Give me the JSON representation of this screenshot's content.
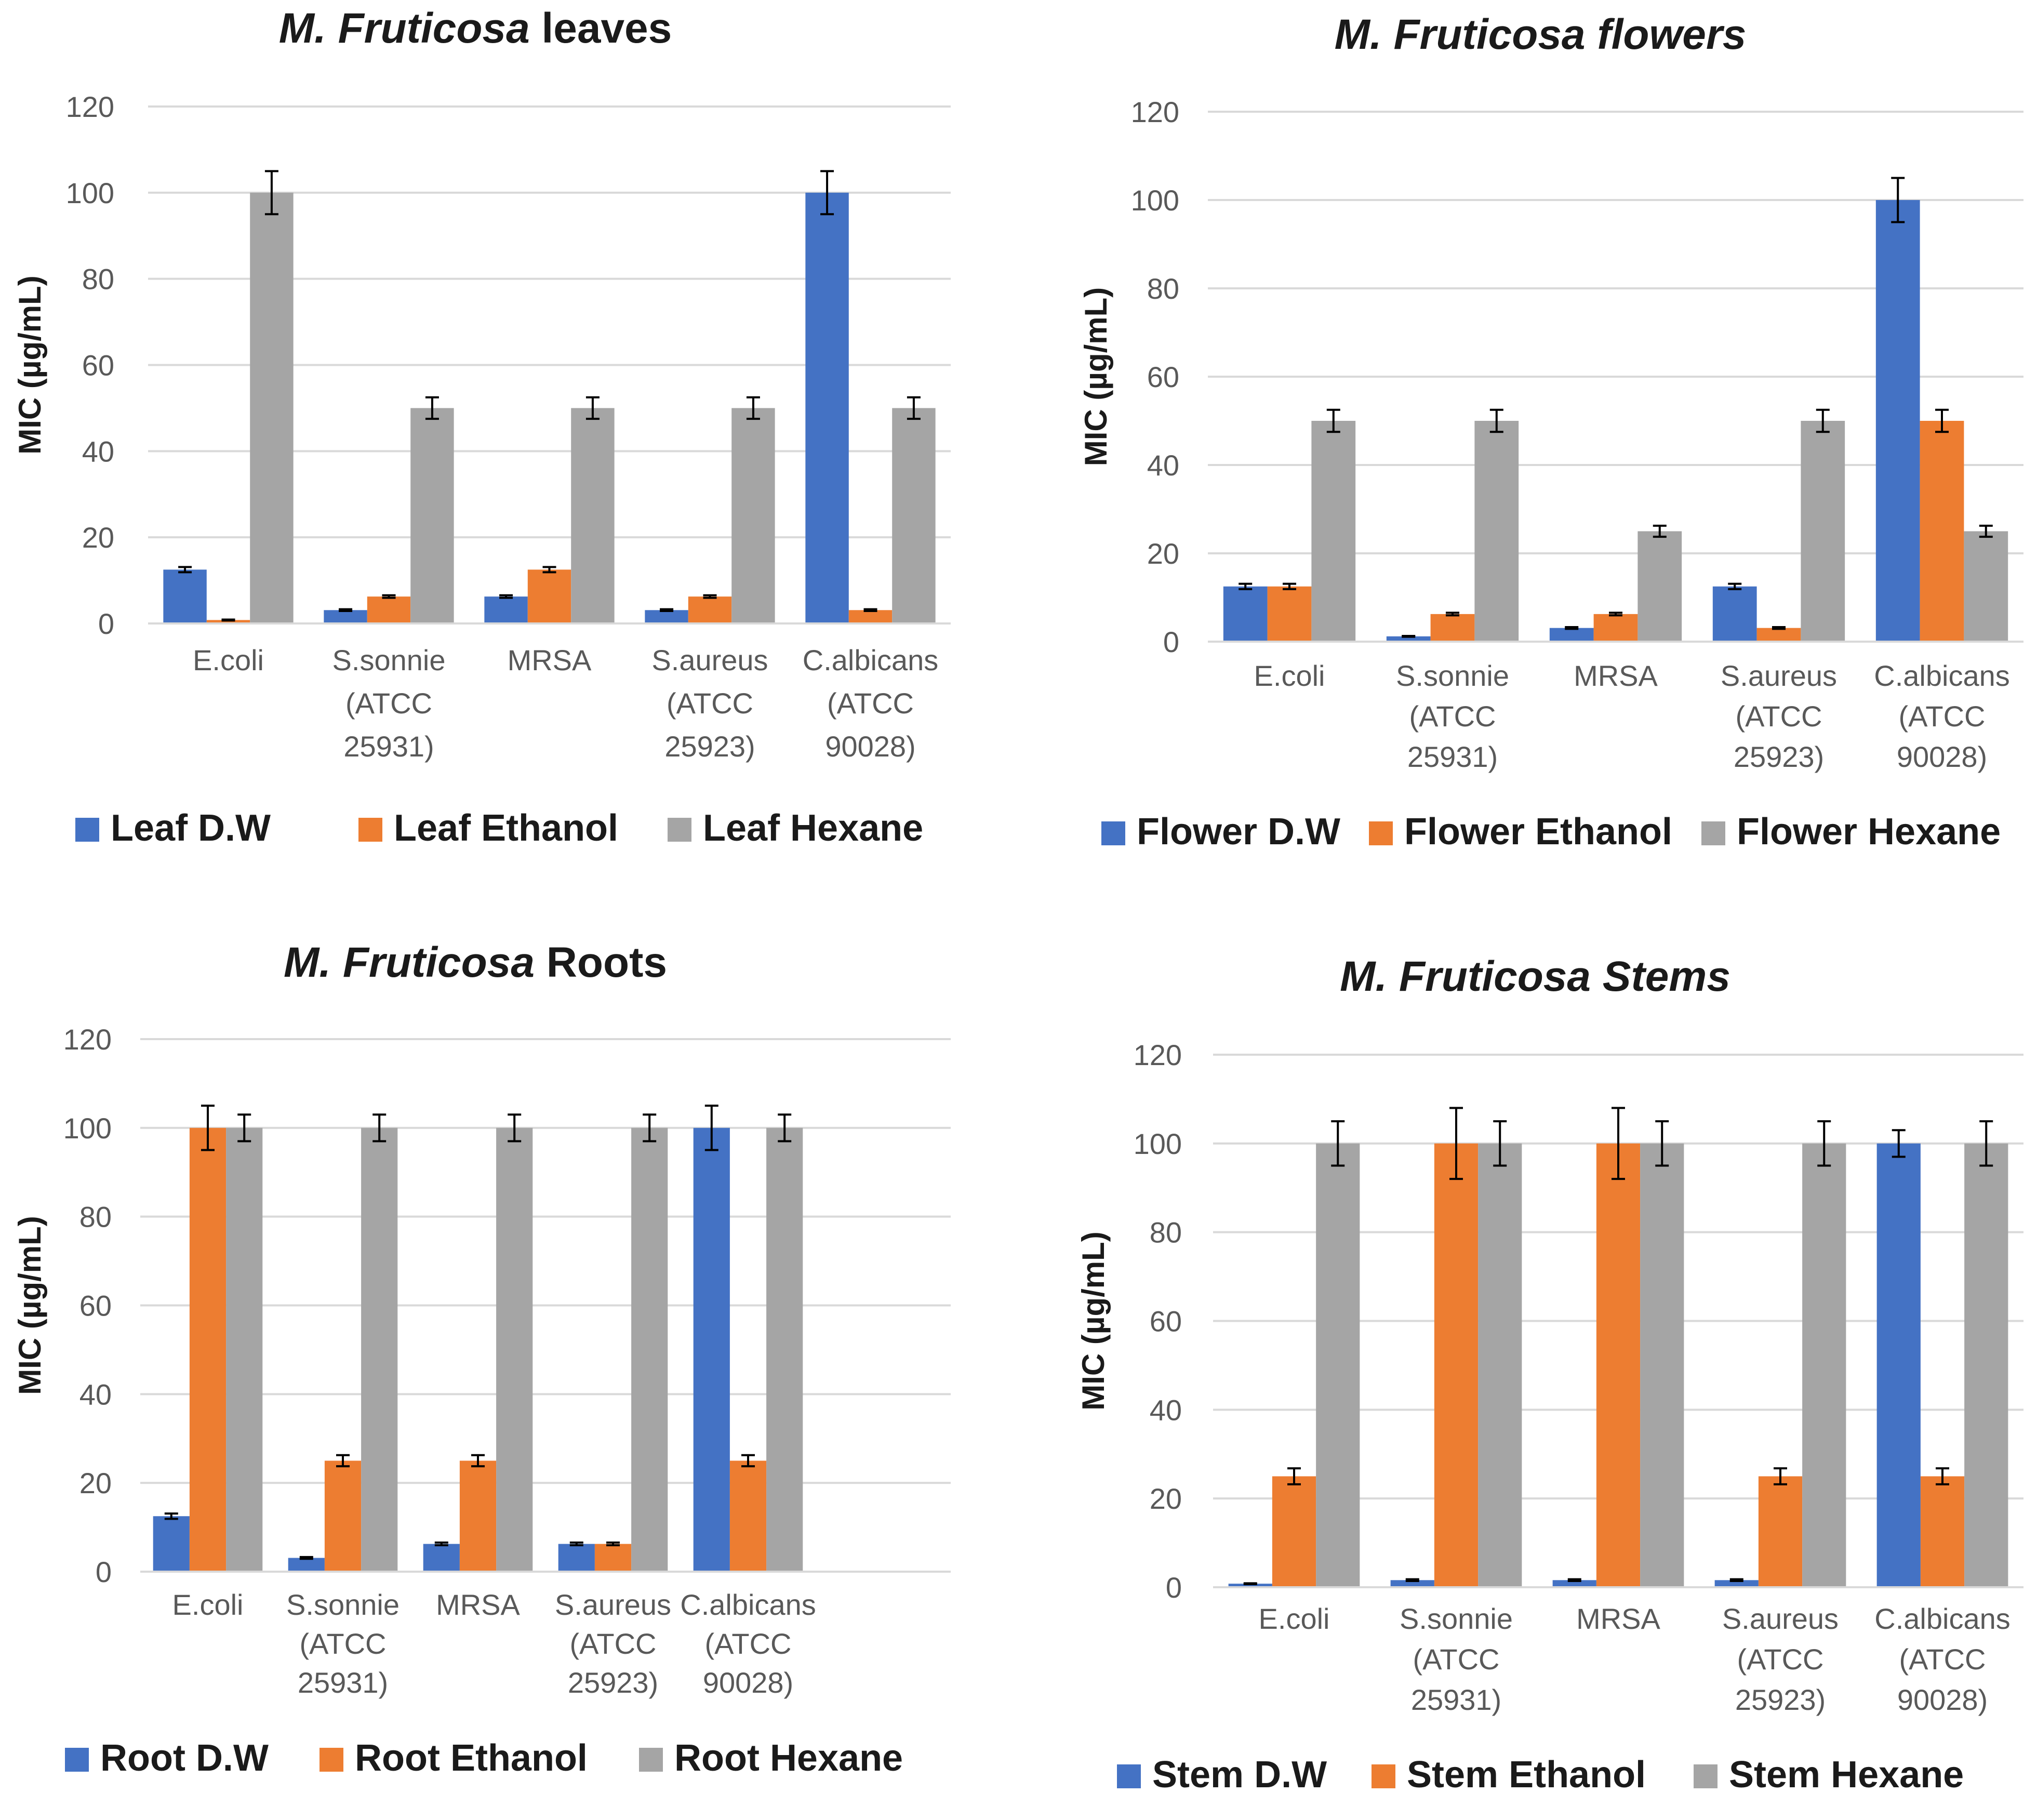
{
  "colors": {
    "dw": "#4472C4",
    "ethanol": "#ED7D31",
    "hexane": "#A5A5A5",
    "grid": "#D9D9D9",
    "axis_text": "#595959",
    "dark_text": "#1a1a1a"
  },
  "chart_data": [
    {
      "type": "bar",
      "title_italic": "M. Fruticosa",
      "title_rest": " leaves",
      "title_rest_italic": false,
      "ylabel": "MIC (µg/mL)",
      "ylim": [
        0,
        120
      ],
      "yticks": [
        "0",
        "20",
        "40",
        "60",
        "80",
        "100",
        "120"
      ],
      "categories": [
        [
          "E.coli"
        ],
        [
          "S.sonnie",
          "(ATCC",
          "25931)"
        ],
        [
          "MRSA"
        ],
        [
          "S.aureus",
          "(ATCC",
          "25923)"
        ],
        [
          "C.albicans",
          "(ATCC",
          "90028)"
        ]
      ],
      "legend_position": "bottom",
      "series": [
        {
          "name": "Leaf D.W",
          "color_key": "dw",
          "values": [
            12.5,
            3.1,
            6.25,
            3.1,
            100
          ],
          "errors": [
            0.6,
            0.2,
            0.3,
            0.2,
            5
          ]
        },
        {
          "name": "Leaf Ethanol",
          "color_key": "ethanol",
          "values": [
            0.8,
            6.25,
            12.5,
            6.25,
            3.1
          ],
          "errors": [
            0.1,
            0.3,
            0.6,
            0.3,
            0.2
          ]
        },
        {
          "name": "Leaf Hexane",
          "color_key": "hexane",
          "values": [
            100,
            50,
            50,
            50,
            50
          ],
          "errors": [
            5,
            2.5,
            2.5,
            2.5,
            2.5
          ]
        }
      ]
    },
    {
      "type": "bar",
      "title_italic": "M. Fruticosa",
      "title_rest": " flowers",
      "title_rest_italic": true,
      "ylabel": "MIC (µg/mL)",
      "ylim": [
        0,
        120
      ],
      "yticks": [
        "0",
        "20",
        "40",
        "60",
        "80",
        "100",
        "120"
      ],
      "categories": [
        [
          "E.coli"
        ],
        [
          "S.sonnie",
          "(ATCC",
          "25931)"
        ],
        [
          "MRSA"
        ],
        [
          "S.aureus",
          "(ATCC",
          "25923)"
        ],
        [
          "C.albicans",
          "(ATCC",
          "90028)"
        ]
      ],
      "legend_position": "bottom",
      "series": [
        {
          "name": "Flower D.W",
          "color_key": "dw",
          "values": [
            12.5,
            1.2,
            3.1,
            12.5,
            100
          ],
          "errors": [
            0.6,
            0.1,
            0.2,
            0.6,
            5
          ]
        },
        {
          "name": "Flower Ethanol",
          "color_key": "ethanol",
          "values": [
            12.5,
            6.25,
            6.25,
            3.1,
            50
          ],
          "errors": [
            0.6,
            0.3,
            0.3,
            0.2,
            2.5
          ]
        },
        {
          "name": "Flower Hexane",
          "color_key": "hexane",
          "values": [
            50,
            50,
            25,
            50,
            25
          ],
          "errors": [
            2.5,
            2.5,
            1.25,
            2.5,
            1.25
          ]
        }
      ]
    },
    {
      "type": "bar",
      "title_italic": "M. Fruticosa",
      "title_rest": "  Roots",
      "title_rest_italic": false,
      "ylabel": "MIC (µg/mL)",
      "ylim": [
        0,
        120
      ],
      "yticks": [
        "0",
        "20",
        "40",
        "60",
        "80",
        "100",
        "120"
      ],
      "categories": [
        [
          "E.coli"
        ],
        [
          "S.sonnie",
          "(ATCC",
          "25931)"
        ],
        [
          "MRSA"
        ],
        [
          "S.aureus",
          "(ATCC",
          "25923)"
        ],
        [
          "C.albicans",
          "(ATCC",
          "90028)"
        ],
        [
          ""
        ]
      ],
      "legend_position": "bottom",
      "series": [
        {
          "name": "Root D.W",
          "color_key": "dw",
          "values": [
            12.5,
            3.1,
            6.25,
            6.25,
            100,
            null
          ],
          "errors": [
            0.6,
            0.2,
            0.3,
            0.3,
            5,
            0
          ]
        },
        {
          "name": "Root Ethanol",
          "color_key": "ethanol",
          "values": [
            100,
            25,
            25,
            6.25,
            25,
            null
          ],
          "errors": [
            5,
            1.25,
            1.25,
            0.3,
            1.25,
            0
          ]
        },
        {
          "name": "Root Hexane",
          "color_key": "hexane",
          "values": [
            100,
            100,
            100,
            100,
            100,
            null
          ],
          "errors": [
            3,
            3,
            3,
            3,
            3,
            0
          ]
        }
      ]
    },
    {
      "type": "bar",
      "title_italic": "M. Fruticosa",
      "title_rest": " Stems",
      "title_rest_italic": true,
      "ylabel": "MIC (µg/mL)",
      "ylim": [
        0,
        120
      ],
      "yticks": [
        "0",
        "20",
        "40",
        "60",
        "80",
        "100",
        "120"
      ],
      "categories": [
        [
          "E.coli"
        ],
        [
          "S.sonnie",
          "(ATCC",
          "25931)"
        ],
        [
          "MRSA"
        ],
        [
          "S.aureus",
          "(ATCC",
          "25923)"
        ],
        [
          "C.albicans",
          "(ATCC",
          "90028)"
        ]
      ],
      "legend_position": "bottom",
      "series": [
        {
          "name": "Stem D.W",
          "color_key": "dw",
          "values": [
            0.8,
            1.6,
            1.6,
            1.6,
            100
          ],
          "errors": [
            0.1,
            0.2,
            0.2,
            0.2,
            3
          ]
        },
        {
          "name": "Stem Ethanol",
          "color_key": "ethanol",
          "values": [
            25,
            100,
            100,
            25,
            25
          ],
          "errors": [
            1.8,
            8,
            8,
            1.8,
            1.8
          ]
        },
        {
          "name": "Stem Hexane",
          "color_key": "hexane",
          "values": [
            100,
            100,
            100,
            100,
            100
          ],
          "errors": [
            5,
            5,
            5,
            5,
            5
          ]
        }
      ]
    }
  ]
}
